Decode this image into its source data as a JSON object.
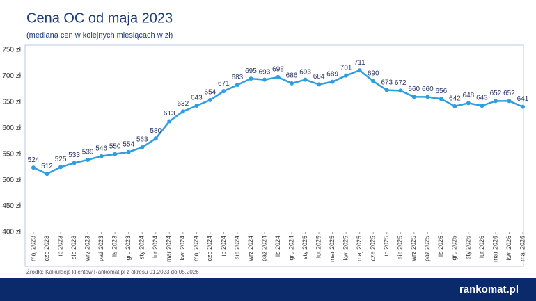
{
  "chart_data": {
    "type": "line",
    "title": "Cena OC od maja 2023",
    "subtitle": "(mediana cen w kolejnych miesiącach w zł)",
    "source": "Źródło: Kalkulacje klientów Rankomat.pl z okresu 01.2023 do 05.2026",
    "brand": "rankomat.pl",
    "categories": [
      "maj 2023",
      "cze 2023",
      "lip 2023",
      "sie 2023",
      "wrz 2023",
      "paź 2023",
      "lis 2023",
      "gru 2023",
      "sty 2024",
      "lut 2024",
      "mar 2024",
      "kwi 2024",
      "maj 2024",
      "cze 2024",
      "lip 2024",
      "sie 2024",
      "wrz 2024",
      "paź 2024",
      "lis 2024",
      "gru 2024",
      "sty 2025",
      "lut 2025",
      "mar 2025",
      "kwi 2025",
      "maj 2025",
      "cze 2025",
      "lip 2025",
      "sie 2025",
      "wrz 2025",
      "paź 2025",
      "lis 2025",
      "gru 2025",
      "sty 2026",
      "lut 2026",
      "mar 2026",
      "kwi 2026",
      "maj 2026"
    ],
    "values": [
      524,
      512,
      525,
      533,
      539,
      546,
      550,
      554,
      563,
      580,
      613,
      632,
      643,
      654,
      671,
      683,
      695,
      693,
      698,
      686,
      693,
      684,
      689,
      701,
      711,
      690,
      673,
      672,
      660,
      660,
      656,
      642,
      648,
      643,
      652,
      652,
      641
    ],
    "color": "#2f9ee0",
    "ylim": [
      400,
      750
    ],
    "yticks": [
      {
        "value": 400,
        "label": "400 zł"
      },
      {
        "value": 450,
        "label": "450 zł"
      },
      {
        "value": 500,
        "label": "500 zł"
      },
      {
        "value": 550,
        "label": "550 zł"
      },
      {
        "value": 600,
        "label": "600 zł"
      },
      {
        "value": 650,
        "label": "650 zł"
      },
      {
        "value": 700,
        "label": "700 zł"
      },
      {
        "value": 750,
        "label": "750 zł"
      }
    ],
    "grid": false
  }
}
